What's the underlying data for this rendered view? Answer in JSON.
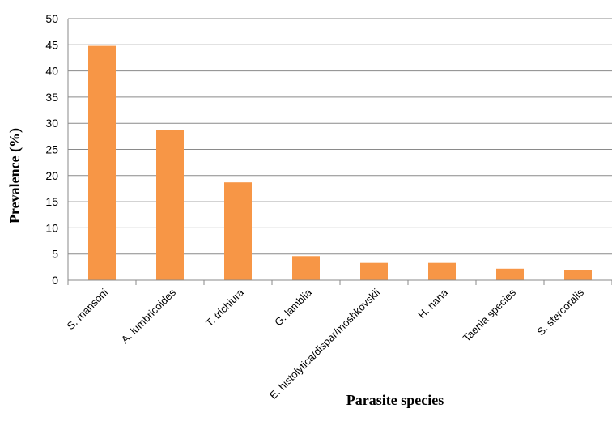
{
  "chart_data": {
    "type": "bar",
    "categories": [
      "S. mansoni",
      "A. lumbricoides",
      "T. trichiura",
      "G. lamblia",
      "E. histolytica/dispar/moshkovskii",
      "H. nana",
      "Taenia species",
      "S. stercoralis"
    ],
    "values": [
      44.8,
      28.7,
      18.7,
      4.6,
      3.3,
      3.3,
      2.2,
      2.0
    ],
    "title": "",
    "xlabel": "Parasite species",
    "ylabel": "Prevalence (%)",
    "ylim": [
      0,
      50
    ],
    "yticks": [
      "0",
      "5",
      "10",
      "15",
      "20",
      "25",
      "30",
      "35",
      "40",
      "45",
      "50"
    ],
    "grid": true,
    "bar_color": "#f79646"
  }
}
